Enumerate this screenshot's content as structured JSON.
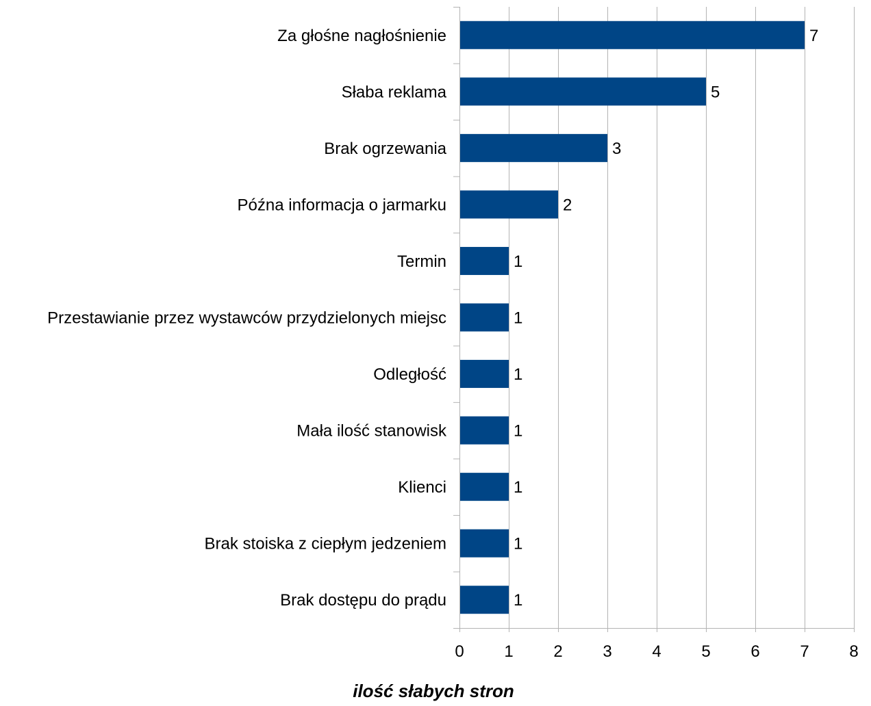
{
  "chart_data": {
    "type": "bar",
    "orientation": "horizontal",
    "categories": [
      "Za głośne nagłośnienie",
      "Słaba reklama",
      "Brak ogrzewania",
      "Późna informacja o jarmarku",
      "Termin",
      "Przestawianie przez wystawców przydzielonych miejsc",
      "Odległość",
      "Mała ilość stanowisk",
      "Klienci",
      "Brak stoiska z ciepłym jedzeniem",
      "Brak dostępu do prądu"
    ],
    "values": [
      7,
      5,
      3,
      2,
      1,
      1,
      1,
      1,
      1,
      1,
      1
    ],
    "data_labels": [
      "7",
      "5",
      "3",
      "2",
      "1",
      "1",
      "1",
      "1",
      "1",
      "1",
      "1"
    ],
    "title": "",
    "xlabel": "ilość słabych stron",
    "ylabel": "",
    "xlim": [
      0,
      8
    ],
    "x_ticks": [
      "0",
      "1",
      "2",
      "3",
      "4",
      "5",
      "6",
      "7",
      "8"
    ],
    "grid": "vertical",
    "legend": "none",
    "bar_color": "#004586",
    "grid_color": "#b3b3b3"
  }
}
